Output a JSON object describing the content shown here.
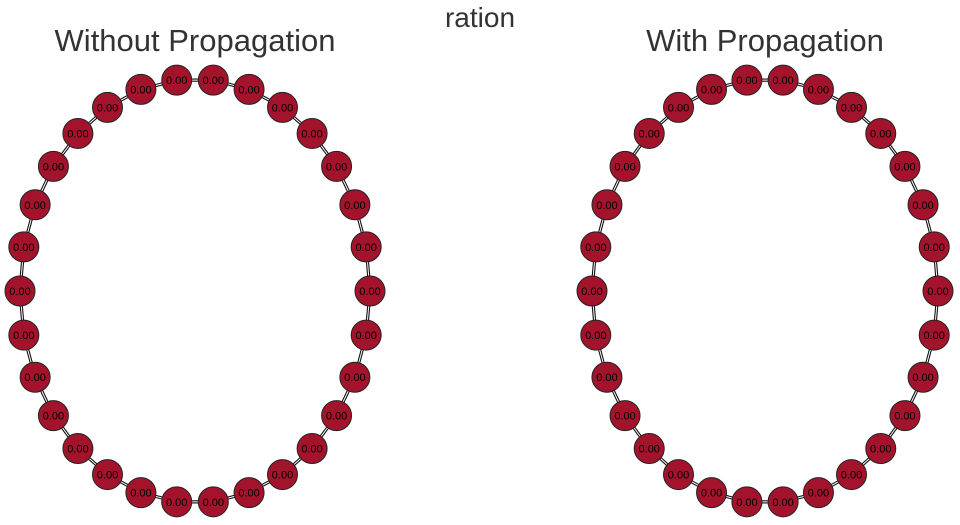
{
  "figure": {
    "suptitle": "ration",
    "colors": {
      "node": "#a3142c",
      "edge": "#111111"
    },
    "panels": [
      {
        "title": "Without Propagation",
        "node_count": 30,
        "values": [
          "0.00",
          "0.00",
          "0.00",
          "0.00",
          "0.00",
          "0.00",
          "0.00",
          "0.00",
          "0.00",
          "0.00",
          "0.00",
          "0.00",
          "0.00",
          "0.00",
          "0.00",
          "0.00",
          "0.00",
          "0.00",
          "0.00",
          "0.00",
          "0.00",
          "0.00",
          "0.00",
          "0.00",
          "0.00",
          "0.00",
          "0.00",
          "0.00",
          "0.00",
          "0.00"
        ]
      },
      {
        "title": "With Propagation",
        "node_count": 30,
        "values": [
          "0.00",
          "0.00",
          "0.00",
          "0.00",
          "0.00",
          "0.00",
          "0.00",
          "0.00",
          "0.00",
          "0.00",
          "0.00",
          "0.00",
          "0.00",
          "0.00",
          "0.00",
          "0.00",
          "0.00",
          "0.00",
          "0.00",
          "0.00",
          "0.00",
          "0.00",
          "0.00",
          "0.00",
          "0.00",
          "0.00",
          "0.00",
          "0.00",
          "0.00",
          "0.00"
        ]
      }
    ]
  }
}
